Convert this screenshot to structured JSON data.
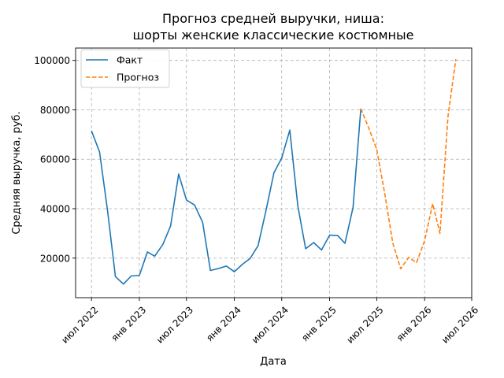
{
  "chart_data": {
    "type": "line",
    "title_line1": "Прогноз средней выручки, ниша:",
    "title_line2": "шорты женские классические костюмные",
    "xlabel": "Дата",
    "ylabel": "Средняя выручка, руб.",
    "x_ticks": [
      {
        "date": "2022-07-01",
        "label": "июл 2022"
      },
      {
        "date": "2023-01-01",
        "label": "янв 2023"
      },
      {
        "date": "2023-07-01",
        "label": "июл 2023"
      },
      {
        "date": "2024-01-01",
        "label": "янв 2024"
      },
      {
        "date": "2024-07-01",
        "label": "июл 2024"
      },
      {
        "date": "2025-01-01",
        "label": "янв 2025"
      },
      {
        "date": "2025-07-01",
        "label": "июл 2025"
      },
      {
        "date": "2026-01-01",
        "label": "янв 2026"
      },
      {
        "date": "2026-07-01",
        "label": "июл 2026"
      }
    ],
    "y_ticks": [
      20000,
      40000,
      60000,
      80000,
      100000
    ],
    "xlim": [
      "2022-05-01",
      "2026-07-01"
    ],
    "ylim": [
      4000,
      105000
    ],
    "grid": true,
    "legend_position": "top-left",
    "series": [
      {
        "name": "Факт",
        "color": "#1f77b4",
        "style": "solid",
        "x": [
          "2022-07-01",
          "2022-08-01",
          "2022-09-01",
          "2022-10-01",
          "2022-11-01",
          "2022-12-01",
          "2023-01-01",
          "2023-02-01",
          "2023-03-01",
          "2023-04-01",
          "2023-05-01",
          "2023-06-01",
          "2023-07-01",
          "2023-08-01",
          "2023-09-01",
          "2023-10-01",
          "2023-11-01",
          "2023-12-01",
          "2024-01-01",
          "2024-02-01",
          "2024-03-01",
          "2024-04-01",
          "2024-05-01",
          "2024-06-01",
          "2024-07-01",
          "2024-08-01",
          "2024-09-01",
          "2024-10-01",
          "2024-11-01",
          "2024-12-01",
          "2025-01-01",
          "2025-02-01",
          "2025-03-01",
          "2025-04-01",
          "2025-05-01"
        ],
        "y": [
          71500,
          63000,
          39000,
          12500,
          9500,
          12800,
          13000,
          22500,
          20800,
          25500,
          33000,
          54000,
          43500,
          41500,
          34500,
          15000,
          15800,
          16800,
          14500,
          17500,
          19800,
          25000,
          39000,
          54500,
          60500,
          71800,
          41000,
          23800,
          26300,
          23300,
          29300,
          29100,
          26000,
          40500,
          80500
        ]
      },
      {
        "name": "Прогноз",
        "color": "#ff7f0e",
        "style": "dashed",
        "x": [
          "2025-05-01",
          "2025-06-01",
          "2025-07-01",
          "2025-08-01",
          "2025-09-01",
          "2025-10-01",
          "2025-11-01",
          "2025-12-01",
          "2026-01-01",
          "2026-02-01",
          "2026-03-01",
          "2026-04-01",
          "2026-05-01"
        ],
        "y": [
          80500,
          72500,
          64000,
          46000,
          26000,
          15700,
          20300,
          18200,
          27000,
          42000,
          30000,
          77500,
          100500
        ]
      }
    ]
  }
}
